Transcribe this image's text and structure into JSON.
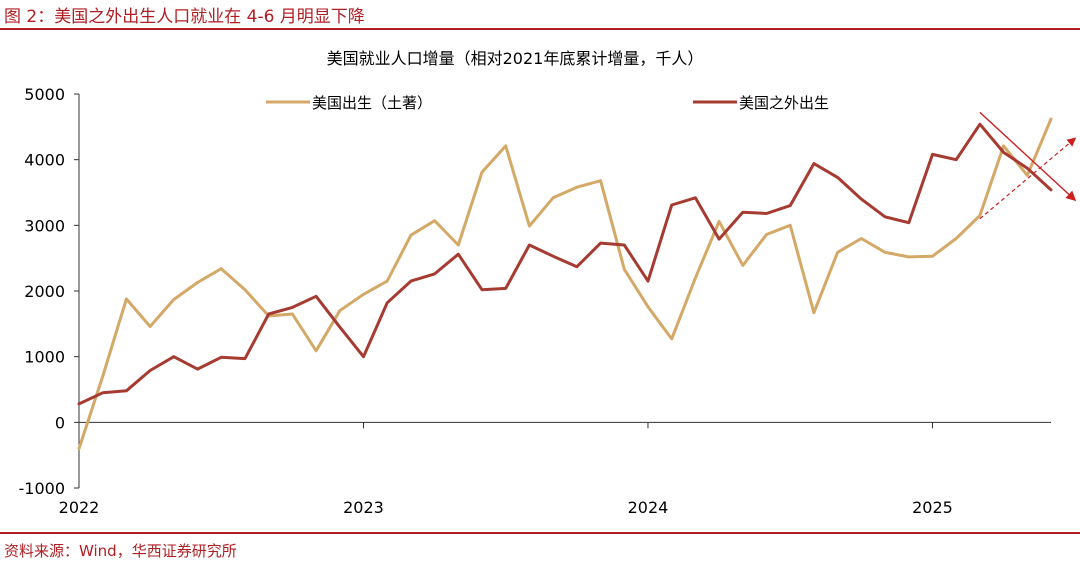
{
  "figure_title": "图 2：美国之外出生人口就业在 4-6 月明显下降",
  "source_note": "资料来源：Wind，华西证券研究所",
  "colors": {
    "accent": "#b01e23",
    "native": "#d4a968",
    "foreign": "#a63b32"
  },
  "chart_data": {
    "type": "line",
    "title": "美国就业人口增量（相对2021年底累计增量，千人）",
    "xlabel": "",
    "ylabel": "",
    "ylim": [
      -1000,
      5000
    ],
    "yticks": [
      -1000,
      0,
      1000,
      2000,
      3000,
      4000,
      5000
    ],
    "xtick_labels": [
      "2022",
      "2023",
      "2024",
      "2025"
    ],
    "legend_position": "top",
    "grid": false,
    "x": [
      "2022-01",
      "2022-02",
      "2022-03",
      "2022-04",
      "2022-05",
      "2022-06",
      "2022-07",
      "2022-08",
      "2022-09",
      "2022-10",
      "2022-11",
      "2022-12",
      "2023-01",
      "2023-02",
      "2023-03",
      "2023-04",
      "2023-05",
      "2023-06",
      "2023-07",
      "2023-08",
      "2023-09",
      "2023-10",
      "2023-11",
      "2023-12",
      "2024-01",
      "2024-02",
      "2024-03",
      "2024-04",
      "2024-05",
      "2024-06",
      "2024-07",
      "2024-08",
      "2024-09",
      "2024-10",
      "2024-11",
      "2024-12",
      "2025-01",
      "2025-02",
      "2025-03",
      "2025-04",
      "2025-05",
      "2025-06"
    ],
    "series": [
      {
        "name": "美国出生（土著）",
        "color": "#d4a968",
        "values": [
          -400,
          700,
          1880,
          1460,
          1870,
          2130,
          2340,
          2020,
          1620,
          1650,
          1090,
          1700,
          1950,
          2150,
          2850,
          3070,
          2700,
          3810,
          4210,
          2990,
          3420,
          3580,
          3680,
          2330,
          1760,
          1270,
          2200,
          3060,
          2390,
          2860,
          3000,
          1670,
          2590,
          2800,
          2590,
          2520,
          2530,
          2800,
          3150,
          4210,
          3760,
          4620
        ]
      },
      {
        "name": "美国之外出生",
        "color": "#a63b32",
        "values": [
          280,
          450,
          480,
          790,
          1000,
          810,
          990,
          970,
          1650,
          1750,
          1920,
          1450,
          1000,
          1820,
          2150,
          2260,
          2560,
          2020,
          2040,
          2700,
          2530,
          2370,
          2730,
          2700,
          2150,
          3310,
          3420,
          2790,
          3200,
          3180,
          3300,
          3940,
          3730,
          3400,
          3130,
          3040,
          4080,
          4000,
          4540,
          4110,
          3870,
          3540
        ]
      }
    ],
    "annotations": [
      {
        "type": "trend-arrow-down",
        "from": [
          "2025-03",
          4720
        ],
        "to": [
          "2025-07",
          3390
        ]
      },
      {
        "type": "trend-arrow-up-dashed",
        "from": [
          "2025-03",
          3100
        ],
        "to": [
          "2025-07",
          4320
        ]
      }
    ]
  }
}
